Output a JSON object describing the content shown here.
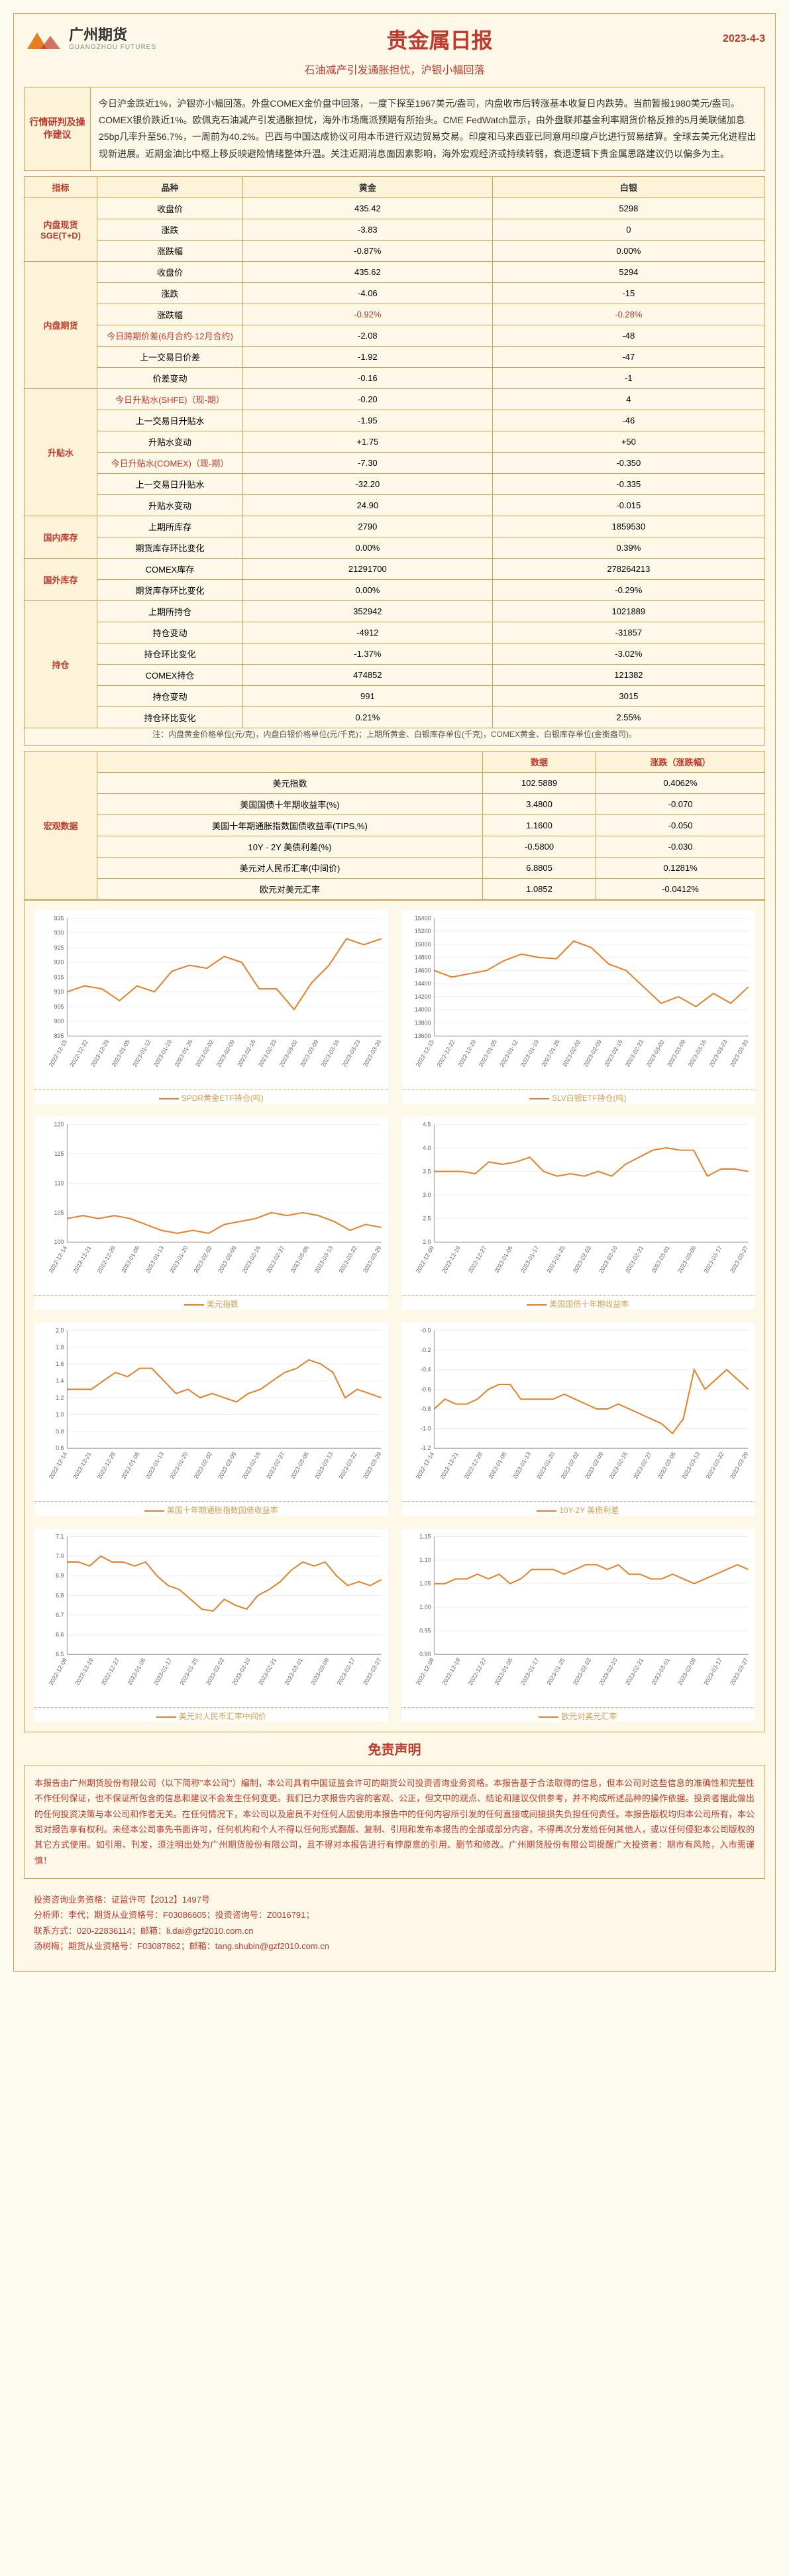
{
  "header": {
    "logo_cn": "广州期货",
    "logo_en": "GUANGZHOU FUTURES",
    "title": "贵金属日报",
    "date": "2023-4-3",
    "subtitle": "石油减产引发通胀担忧，沪银小幅回落"
  },
  "analysis": {
    "label": "行情研判及操作建议",
    "body": "今日沪金跌近1%，沪银亦小幅回落。外盘COMEX金价盘中回落，一度下探至1967美元/盎司，内盘收市后转涨基本收复日内跌势。当前暂报1980美元/盎司。COMEX银价跌近1%。欧佩克石油减产引发通胀担忧，海外市场鹰派预期有所抬头。CME FedWatch显示，由外盘联邦基金利率期货价格反推的5月美联储加息25bp几率升至56.7%，一周前为40.2%。巴西与中国达成协议可用本币进行双边贸易交易。印度和马来西亚已同意用印度卢比进行贸易结算。全球去美元化进程出现新进展。近期金油比中枢上移反映避险情绪整体升温。关注近期消息面因素影响，海外宏观经济或持续转弱，衰退逻辑下贵金属思路建议仍以偏多为主。"
  },
  "table1": {
    "header": [
      "指标",
      "品种",
      "黄金",
      "白银"
    ],
    "groups": [
      {
        "label": "内盘现货SGE(T+D)",
        "rows": [
          [
            "收盘价",
            "435.42",
            "5298"
          ],
          [
            "涨跌",
            "-3.83",
            "0"
          ],
          [
            "涨跌幅",
            "-0.87%",
            "0.00%"
          ]
        ],
        "red_rows": []
      },
      {
        "label": "内盘期货",
        "rows": [
          [
            "收盘价",
            "435.62",
            "5294"
          ],
          [
            "涨跌",
            "-4.06",
            "-15"
          ],
          [
            "涨跌幅",
            "-0.92%",
            "-0.28%"
          ],
          [
            "今日跨期价差(6月合约-12月合约)",
            "-2.08",
            "-48"
          ],
          [
            "上一交易日价差",
            "-1.92",
            "-47"
          ],
          [
            "价差变动",
            "-0.16",
            "-1"
          ]
        ],
        "red_rows": [
          2
        ],
        "red_labels": [
          3
        ]
      },
      {
        "label": "升贴水",
        "rows": [
          [
            "今日升贴水(SHFE)（现-期）",
            "-0.20",
            "4"
          ],
          [
            "上一交易日升贴水",
            "-1.95",
            "-46"
          ],
          [
            "升贴水变动",
            "+1.75",
            "+50"
          ],
          [
            "今日升贴水(COMEX)（现-期）",
            "-7.30",
            "-0.350"
          ],
          [
            "上一交易日升贴水",
            "-32.20",
            "-0.335"
          ],
          [
            "升贴水变动",
            "24.90",
            "-0.015"
          ]
        ],
        "red_rows": [],
        "red_labels": [
          0,
          3
        ]
      },
      {
        "label": "国内库存",
        "rows": [
          [
            "上期所库存",
            "2790",
            "1859530"
          ],
          [
            "期货库存环比变化",
            "0.00%",
            "0.39%"
          ]
        ],
        "red_rows": []
      },
      {
        "label": "国外库存",
        "rows": [
          [
            "COMEX库存",
            "21291700",
            "278264213"
          ],
          [
            "期货库存环比变化",
            "0.00%",
            "-0.29%"
          ]
        ],
        "red_rows": []
      },
      {
        "label": "持仓",
        "rows": [
          [
            "上期所持仓",
            "352942",
            "1021889"
          ],
          [
            "持仓变动",
            "-4912",
            "-31857"
          ],
          [
            "持仓环比变化",
            "-1.37%",
            "-3.02%"
          ],
          [
            "COMEX持仓",
            "474852",
            "121382"
          ],
          [
            "持仓变动",
            "991",
            "3015"
          ],
          [
            "持仓环比变化",
            "0.21%",
            "2.55%"
          ]
        ],
        "red_rows": []
      }
    ],
    "footnote": "注：内盘黄金价格单位(元/克)，内盘白银价格单位(元/千克)；上期所黄金、白银库存单位(千克)，COMEX黄金、白银库存单位(金衡盎司)。"
  },
  "table2": {
    "label": "宏观数据",
    "header": [
      "",
      "数据",
      "涨跌（涨跌幅）"
    ],
    "rows": [
      [
        "美元指数",
        "102.5889",
        "0.4062%"
      ],
      [
        "美国国债十年期收益率(%)",
        "3.4800",
        "-0.070"
      ],
      [
        "美国十年期通胀指数国债收益率(TIPS,%)",
        "1.1600",
        "-0.050"
      ],
      [
        "10Y - 2Y 美债利差(%)",
        "-0.5800",
        "-0.030"
      ],
      [
        "美元对人民币汇率(中间价)",
        "6.8805",
        "0.1281%"
      ],
      [
        "欧元对美元汇率",
        "1.0852",
        "-0.0412%"
      ]
    ]
  },
  "charts": [
    {
      "caption": "SPDR黄金ETF持仓(吨)",
      "ymin": 895,
      "ymax": 935,
      "ystep": 5,
      "series_color": "#e67e22",
      "background": "#ffffff",
      "grid_color": "#eeeeee",
      "dates": [
        "2022-12-15",
        "2022-12-22",
        "2022-12-29",
        "2023-01-05",
        "2023-01-12",
        "2023-01-19",
        "2023-01-26",
        "2023-02-02",
        "2023-02-09",
        "2023-02-16",
        "2023-02-23",
        "2023-03-02",
        "2023-03-09",
        "2023-03-16",
        "2023-03-23",
        "2023-03-30"
      ],
      "values": [
        910,
        912,
        911,
        907,
        912,
        910,
        917,
        919,
        918,
        922,
        920,
        911,
        911,
        904,
        913,
        919,
        928,
        926,
        928
      ]
    },
    {
      "caption": "SLV白银ETF持仓(吨)",
      "ymin": 13600,
      "ymax": 15400,
      "ystep": 200,
      "series_color": "#e67e22",
      "background": "#ffffff",
      "grid_color": "#eeeeee",
      "dates": [
        "2022-12-15",
        "2022-12-22",
        "2022-12-29",
        "2023-01-05",
        "2023-01-12",
        "2023-01-19",
        "2023-01-26",
        "2023-02-02",
        "2023-02-09",
        "2023-02-16",
        "2023-02-23",
        "2023-03-02",
        "2023-03-09",
        "2023-03-16",
        "2023-03-23",
        "2023-03-30"
      ],
      "values": [
        14600,
        14500,
        14550,
        14600,
        14750,
        14850,
        14800,
        14780,
        15050,
        14950,
        14700,
        14600,
        14350,
        14100,
        14200,
        14050,
        14250,
        14100,
        14350
      ]
    },
    {
      "caption": "美元指数",
      "ymin": 100,
      "ymax": 120,
      "ystep": 5,
      "series_color": "#e67e22",
      "background": "#ffffff",
      "grid_color": "#eeeeee",
      "dates": [
        "2022-12-14",
        "2022-12-21",
        "2022-12-28",
        "2023-01-06",
        "2023-01-13",
        "2023-01-20",
        "2023-02-02",
        "2023-02-09",
        "2023-02-16",
        "2023-02-27",
        "2023-03-06",
        "2023-03-13",
        "2023-03-22",
        "2023-03-29"
      ],
      "values": [
        104,
        104.5,
        104,
        104.5,
        104,
        103,
        102,
        101.5,
        102,
        101.5,
        103,
        103.5,
        104,
        105,
        104.5,
        105,
        104.5,
        103.5,
        102,
        103,
        102.5
      ]
    },
    {
      "caption": "美国国债十年期收益率",
      "ymin": 2.0,
      "ymax": 4.5,
      "ystep": 0.5,
      "series_color": "#e67e22",
      "background": "#ffffff",
      "grid_color": "#eeeeee",
      "dates": [
        "2022-12-09",
        "2022-12-19",
        "2022-12-27",
        "2023-01-06",
        "2023-01-17",
        "2023-01-25",
        "2023-02-02",
        "2023-02-10",
        "2023-02-21",
        "2023-03-01",
        "2023-03-09",
        "2023-03-17",
        "2023-03-27"
      ],
      "values": [
        3.5,
        3.5,
        3.5,
        3.45,
        3.7,
        3.65,
        3.7,
        3.8,
        3.5,
        3.4,
        3.45,
        3.4,
        3.5,
        3.4,
        3.65,
        3.8,
        3.95,
        4.0,
        3.95,
        3.95,
        3.4,
        3.55,
        3.55,
        3.5
      ]
    },
    {
      "caption": "美国十年期通胀指数国债收益率",
      "ymin": 0.6,
      "ymax": 2.0,
      "ystep": 0.2,
      "series_color": "#e67e22",
      "background": "#ffffff",
      "grid_color": "#eeeeee",
      "dates": [
        "2022-12-14",
        "2022-12-21",
        "2022-12-28",
        "2023-01-06",
        "2023-01-13",
        "2023-01-20",
        "2023-02-02",
        "2023-02-09",
        "2023-02-16",
        "2023-02-27",
        "2023-03-06",
        "2023-03-13",
        "2023-03-22",
        "2023-03-29"
      ],
      "values": [
        1.3,
        1.3,
        1.3,
        1.4,
        1.5,
        1.45,
        1.55,
        1.55,
        1.4,
        1.25,
        1.3,
        1.2,
        1.25,
        1.2,
        1.15,
        1.25,
        1.3,
        1.4,
        1.5,
        1.55,
        1.65,
        1.6,
        1.5,
        1.2,
        1.3,
        1.25,
        1.2
      ]
    },
    {
      "caption": "10Y-2Y 美债利差",
      "ymin": -1.2,
      "ymax": 0.0,
      "ystep": 0.2,
      "series_color": "#e67e22",
      "background": "#ffffff",
      "grid_color": "#eeeeee",
      "dates": [
        "2022-12-14",
        "2022-12-21",
        "2022-12-28",
        "2023-01-06",
        "2023-01-13",
        "2023-01-20",
        "2023-02-02",
        "2023-02-09",
        "2023-02-16",
        "2023-02-27",
        "2023-03-06",
        "2023-03-13",
        "2023-03-22",
        "2023-03-29"
      ],
      "values": [
        -0.8,
        -0.7,
        -0.75,
        -0.75,
        -0.7,
        -0.6,
        -0.55,
        -0.55,
        -0.7,
        -0.7,
        -0.7,
        -0.7,
        -0.65,
        -0.7,
        -0.75,
        -0.8,
        -0.8,
        -0.75,
        -0.8,
        -0.85,
        -0.9,
        -0.95,
        -1.05,
        -0.9,
        -0.4,
        -0.6,
        -0.5,
        -0.4,
        -0.5,
        -0.6
      ]
    },
    {
      "caption": "美元对人民币汇率中间价",
      "ymin": 6.5,
      "ymax": 7.1,
      "ystep": 0.1,
      "series_color": "#e67e22",
      "background": "#ffffff",
      "grid_color": "#eeeeee",
      "dates": [
        "2022-12-09",
        "2022-12-19",
        "2022-12-27",
        "2023-01-06",
        "2023-01-17",
        "2023-01-25",
        "2023-02-02",
        "2023-02-10",
        "2023-02-21",
        "2023-03-01",
        "2023-03-09",
        "2023-03-17",
        "2023-03-27"
      ],
      "values": [
        6.97,
        6.97,
        6.95,
        7.0,
        6.97,
        6.97,
        6.95,
        6.97,
        6.9,
        6.85,
        6.83,
        6.78,
        6.73,
        6.72,
        6.78,
        6.75,
        6.73,
        6.8,
        6.83,
        6.87,
        6.93,
        6.97,
        6.95,
        6.97,
        6.9,
        6.85,
        6.87,
        6.85,
        6.88
      ]
    },
    {
      "caption": "欧元对美元汇率",
      "ymin": 0.9,
      "ymax": 1.15,
      "ystep": 0.05,
      "series_color": "#e67e22",
      "background": "#ffffff",
      "grid_color": "#eeeeee",
      "dates": [
        "2022-12-09",
        "2022-12-19",
        "2022-12-27",
        "2023-01-06",
        "2023-01-17",
        "2023-01-25",
        "2023-02-02",
        "2023-02-10",
        "2023-02-21",
        "2023-03-01",
        "2023-03-09",
        "2023-03-17",
        "2023-03-27"
      ],
      "values": [
        1.05,
        1.05,
        1.06,
        1.06,
        1.07,
        1.06,
        1.07,
        1.05,
        1.06,
        1.08,
        1.08,
        1.08,
        1.07,
        1.08,
        1.09,
        1.09,
        1.08,
        1.09,
        1.07,
        1.07,
        1.06,
        1.06,
        1.07,
        1.06,
        1.05,
        1.06,
        1.07,
        1.08,
        1.09,
        1.08
      ]
    }
  ],
  "disclaimer": {
    "title": "免责声明",
    "body": "本报告由广州期货股份有限公司（以下简称\"本公司\"）编制，本公司具有中国证监会许可的期货公司投资咨询业务资格。本报告基于合法取得的信息，但本公司对这些信息的准确性和完整性不作任何保证，也不保证所包含的信息和建议不会发生任何变更。我们已力求报告内容的客观、公正，但文中的观点、结论和建议仅供参考，并不构成所述品种的操作依据。投资者据此做出的任何投资决策与本公司和作者无关。在任何情况下，本公司以及雇员不对任何人因使用本报告中的任何内容所引发的任何直接或间接损失负担任何责任。本报告版权均归本公司所有，本公司对报告享有权利。未经本公司事先书面许可，任何机构和个人不得以任何形式翻版、复制、引用和发布本报告的全部或部分内容，不得再次分发给任何其他人，或以任何侵犯本公司版权的其它方式使用。如引用、刊发，须注明出处为广州期货股份有限公司，且不得对本报告进行有悖原意的引用、删节和修改。广州期货股份有限公司提醒广大投资者：期市有风险，入市需谨慎！"
  },
  "footer": {
    "line1": "投资咨询业务资格：证监许可【2012】1497号",
    "line2_a": "分析师：李代；期货从业资格号：F03086605；投资咨询号：Z0016791；",
    "line2_b": "联系方式：020-22836114；邮箱：li.dai@gzf2010.com.cn",
    "line3_a": "汤树梅；期货从业资格号：F03087862；邮箱：tang.shubin@gzf2010.com.cn",
    "line3_b": ""
  }
}
